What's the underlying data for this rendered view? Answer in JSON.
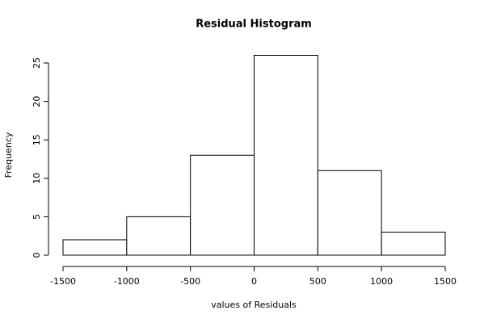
{
  "chart_data": {
    "type": "histogram",
    "title": "Residual Histogram",
    "x_label": "values of Residuals",
    "y_label": "Frequency",
    "bins": [
      -1500,
      -1000,
      -500,
      0,
      500,
      1000,
      1500
    ],
    "values": [
      2,
      5,
      13,
      26,
      11,
      3
    ],
    "color": "#ffffff",
    "xlim": [
      -1500,
      1500
    ],
    "xticks": [
      -1500,
      -1000,
      -500,
      0,
      500,
      1000,
      1500
    ],
    "ylim": [
      0,
      26
    ],
    "yticks": [
      0,
      5,
      10,
      15,
      20,
      25
    ],
    "grid": false
  }
}
